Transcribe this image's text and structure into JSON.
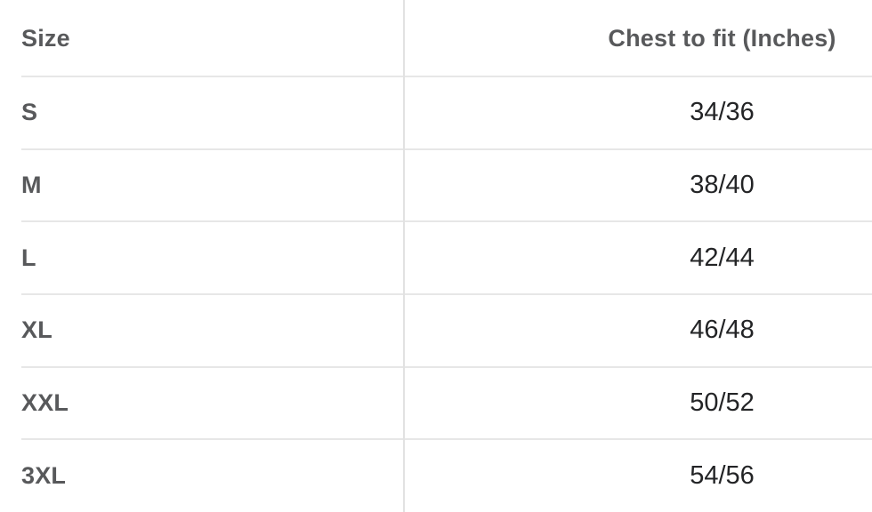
{
  "table": {
    "columns": {
      "size_header": "Size",
      "chest_header": "Chest to fit (Inches)"
    },
    "rows": [
      {
        "size": "S",
        "chest": "34/36"
      },
      {
        "size": "M",
        "chest": "38/40"
      },
      {
        "size": "L",
        "chest": "42/44"
      },
      {
        "size": "XL",
        "chest": "46/48"
      },
      {
        "size": "XXL",
        "chest": "50/52"
      },
      {
        "size": "3XL",
        "chest": "54/56"
      }
    ]
  },
  "colors": {
    "header_text": "#58595b",
    "value_text": "#232426",
    "row_separator": "#e7e7e7",
    "column_divider": "#e2e2e2",
    "background": "#ffffff"
  }
}
